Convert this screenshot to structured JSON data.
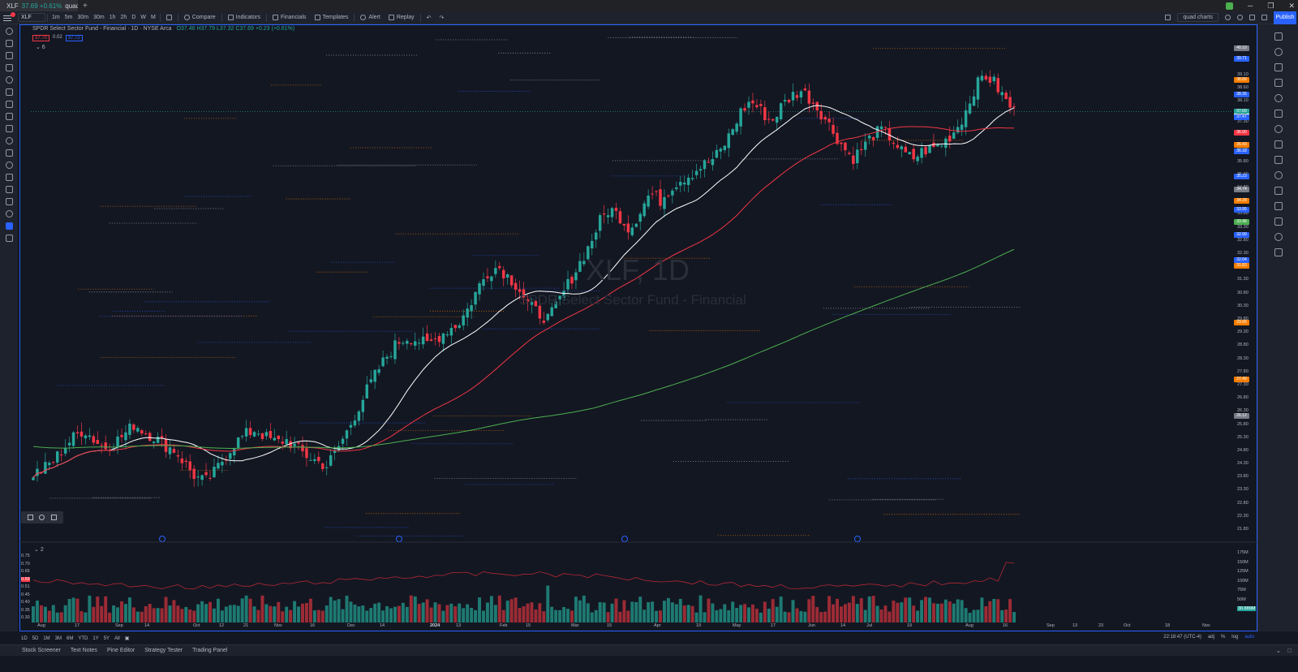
{
  "browser": {
    "tab_label": "XLF",
    "tab_price": "37.69 +0.61%",
    "tab_extra": "quad ch",
    "close_glyph": "×",
    "new_tab_glyph": "+"
  },
  "toolbar": {
    "symbol": "XLF",
    "intervals": [
      "1m",
      "5m",
      "30m",
      "30m",
      "1h",
      "2h",
      "D",
      "W",
      "M"
    ],
    "compare_label": "Compare",
    "indicators_label": "Indicators",
    "financials_label": "Financials",
    "templates_label": "Templates",
    "alert_label": "Alert",
    "replay_label": "Replay",
    "layout_name": "quad charts",
    "publish_label": "Publish"
  },
  "legend": {
    "title": "SPDR Select Sector Fund - Financial · 1D · NYSE Arca",
    "ohlc": "O37.46 H37.79 L37.32 C37.69 +0.23 (+0.61%)",
    "pill_1": "37.70",
    "pill_mid": "0.02",
    "pill_2": "37.72",
    "volume_label": "2"
  },
  "watermark": {
    "symbol": "XLF, 1D",
    "description": "SPDR Select Sector Fund - Financial"
  },
  "chart_data": {
    "type": "candlestick",
    "ylim": [
      21.4,
      40.7
    ],
    "y_ticks": [
      "40.10",
      "39.70",
      "39.10",
      "38.60",
      "38.10",
      "37.60",
      "37.30",
      "36.80",
      "36.30",
      "35.80",
      "35.30",
      "34.80",
      "34.30",
      "33.80",
      "33.30",
      "32.80",
      "32.30",
      "31.80",
      "31.30",
      "30.80",
      "30.30",
      "29.80",
      "29.30",
      "28.80",
      "28.30",
      "27.80",
      "27.30",
      "26.80",
      "26.30",
      "25.80",
      "25.30",
      "24.80",
      "24.30",
      "23.80",
      "23.30",
      "22.80",
      "22.30",
      "21.80"
    ],
    "price_tags": [
      {
        "label": "40.10",
        "color": "#787b86"
      },
      {
        "label": "39.71",
        "color": "#2962ff"
      },
      {
        "label": "38.89",
        "color": "#f57c00"
      },
      {
        "label": "38.35",
        "color": "#2962ff"
      },
      {
        "label": "37.69",
        "color": "#26a69a"
      },
      {
        "label": "37.49",
        "color": "#ffffff"
      },
      {
        "label": "37.47",
        "color": "#2962ff"
      },
      {
        "label": "36.90",
        "color": "#f23645"
      },
      {
        "label": "36.43",
        "color": "#f57c00"
      },
      {
        "label": "36.18",
        "color": "#2962ff"
      },
      {
        "label": "35.23",
        "color": "#2962ff"
      },
      {
        "label": "34.74",
        "color": "#787b86"
      },
      {
        "label": "34.28",
        "color": "#f57c00"
      },
      {
        "label": "33.95",
        "color": "#2962ff"
      },
      {
        "label": "33.48",
        "color": "#4caf50"
      },
      {
        "label": "32.99",
        "color": "#2962ff"
      },
      {
        "label": "32.04",
        "color": "#2962ff"
      },
      {
        "label": "31.83",
        "color": "#f57c00"
      },
      {
        "label": "29.66",
        "color": "#f57c00"
      },
      {
        "label": "27.49",
        "color": "#f57c00"
      },
      {
        "label": "26.12",
        "color": "#787b86"
      }
    ],
    "x_labels": [
      "Aug",
      "17",
      "Sep",
      "14",
      "Oct",
      "12",
      "21",
      "Nov",
      "16",
      "Dec",
      "14",
      "2024",
      "13",
      "Feb",
      "15",
      "Mar",
      "15",
      "Apr",
      "19",
      "May",
      "17",
      "Jun",
      "14",
      "Jul",
      "19",
      "Aug",
      "16",
      "Sep",
      "13",
      "23",
      "Oct",
      "18",
      "Nov"
    ],
    "volume": {
      "ylabels_left": [
        "0.75",
        "0.70",
        "0.65",
        "0.59",
        "0.51",
        "0.45",
        "0.40",
        "0.35",
        "0.30"
      ],
      "ylabels_right": [
        "175M",
        "150M",
        "125M",
        "100M",
        "75M",
        "50M",
        "30.889M"
      ]
    },
    "series": [
      {
        "name": "MA short",
        "color": "#ffffff"
      },
      {
        "name": "MA mid",
        "color": "#f23645"
      },
      {
        "name": "MA long",
        "color": "#4caf50"
      }
    ],
    "close_path": [
      23.9,
      24.1,
      24.4,
      24.9,
      25.3,
      25.6,
      25.2,
      24.9,
      25.1,
      25.4,
      25.8,
      25.5,
      25.3,
      25.0,
      24.8,
      24.3,
      23.8,
      23.6,
      24.0,
      24.6,
      25.1,
      25.4,
      25.6,
      25.3,
      25.1,
      25.2,
      24.9,
      24.6,
      24.4,
      24.2,
      24.8,
      25.5,
      26.3,
      27.1,
      27.8,
      28.4,
      28.9,
      29.1,
      29.0,
      28.8,
      29.1,
      29.4,
      29.6,
      30.2,
      31.0,
      31.6,
      31.8,
      31.4,
      31.0,
      30.3,
      30.0,
      29.8,
      30.5,
      31.2,
      31.9,
      32.6,
      33.5,
      34.0,
      33.7,
      33.2,
      33.9,
      34.6,
      34.3,
      34.8,
      35.1,
      35.3,
      35.6,
      35.8,
      36.2,
      36.9,
      37.7,
      38.1,
      37.7,
      37.3,
      37.9,
      38.3,
      38.5,
      38.1,
      37.6,
      37.0,
      36.4,
      35.9,
      36.3,
      36.8,
      37.0,
      36.6,
      36.1,
      35.9,
      36.2,
      36.3,
      36.5,
      36.9,
      37.5,
      38.5,
      39.1,
      38.8,
      38.2,
      37.69
    ]
  },
  "ranges": [
    "1D",
    "5D",
    "1M",
    "3M",
    "6M",
    "YTD",
    "1Y",
    "5Y",
    "All"
  ],
  "right_controls": {
    "clock": "22:18:47 (UTC-4)",
    "adj": "adj",
    "pct": "%",
    "log": "log",
    "auto": "auto"
  },
  "bottom_tabs": [
    "Stock Screener",
    "Text Notes",
    "Pine Editor",
    "Strategy Tester",
    "Trading Panel"
  ],
  "colors": {
    "up": "#26a69a",
    "down": "#f23645",
    "accent": "#2962ff"
  }
}
